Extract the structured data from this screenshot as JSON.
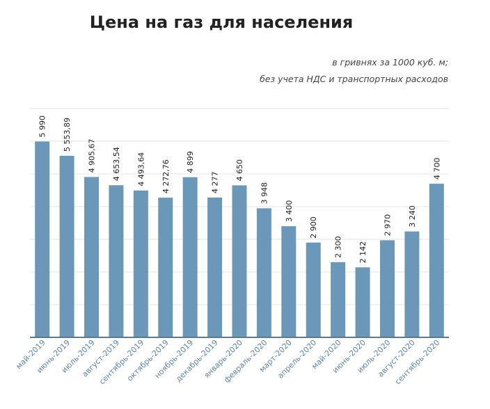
{
  "chart_data": {
    "type": "bar",
    "title": "Цена на газ для населения",
    "subtitle_lines": [
      "в гривнях за 1000 куб. м;",
      "без учета НДС и транспортных расходов"
    ],
    "categories": [
      "май-2019",
      "июнь-2019",
      "июль-2019",
      "август-2019",
      "сентябрь-2019",
      "октябрь-2019",
      "ноябрь-2019",
      "декабрь-2019",
      "январь-2020",
      "февраль-2020",
      "март-2020",
      "апрель-2020",
      "май-2020",
      "июнь-2020",
      "июль-2020",
      "август-2020",
      "сентябрь-2020"
    ],
    "values": [
      5990,
      5553.89,
      4905.67,
      4653.54,
      4493.64,
      4272.76,
      4899,
      4277,
      4650,
      3948,
      3400,
      2900,
      2300,
      2142,
      2970,
      3240,
      4700
    ],
    "value_labels": [
      "5 990",
      "5 553,89",
      "4 905,67",
      "4 653,54",
      "4 493,64",
      "4 272,76",
      "4 899",
      "4 277",
      "4 650",
      "3 948",
      "3 400",
      "2 900",
      "2 300",
      "2 142",
      "2 970",
      "3 240",
      "4 700"
    ],
    "ylim": [
      0,
      7000
    ],
    "y_grid_step": 1000,
    "grid": true,
    "bar_color": "#6b97b9",
    "axis_color": "#5b7a93",
    "label_color": "#5d86a8",
    "text_color": "#222222"
  }
}
